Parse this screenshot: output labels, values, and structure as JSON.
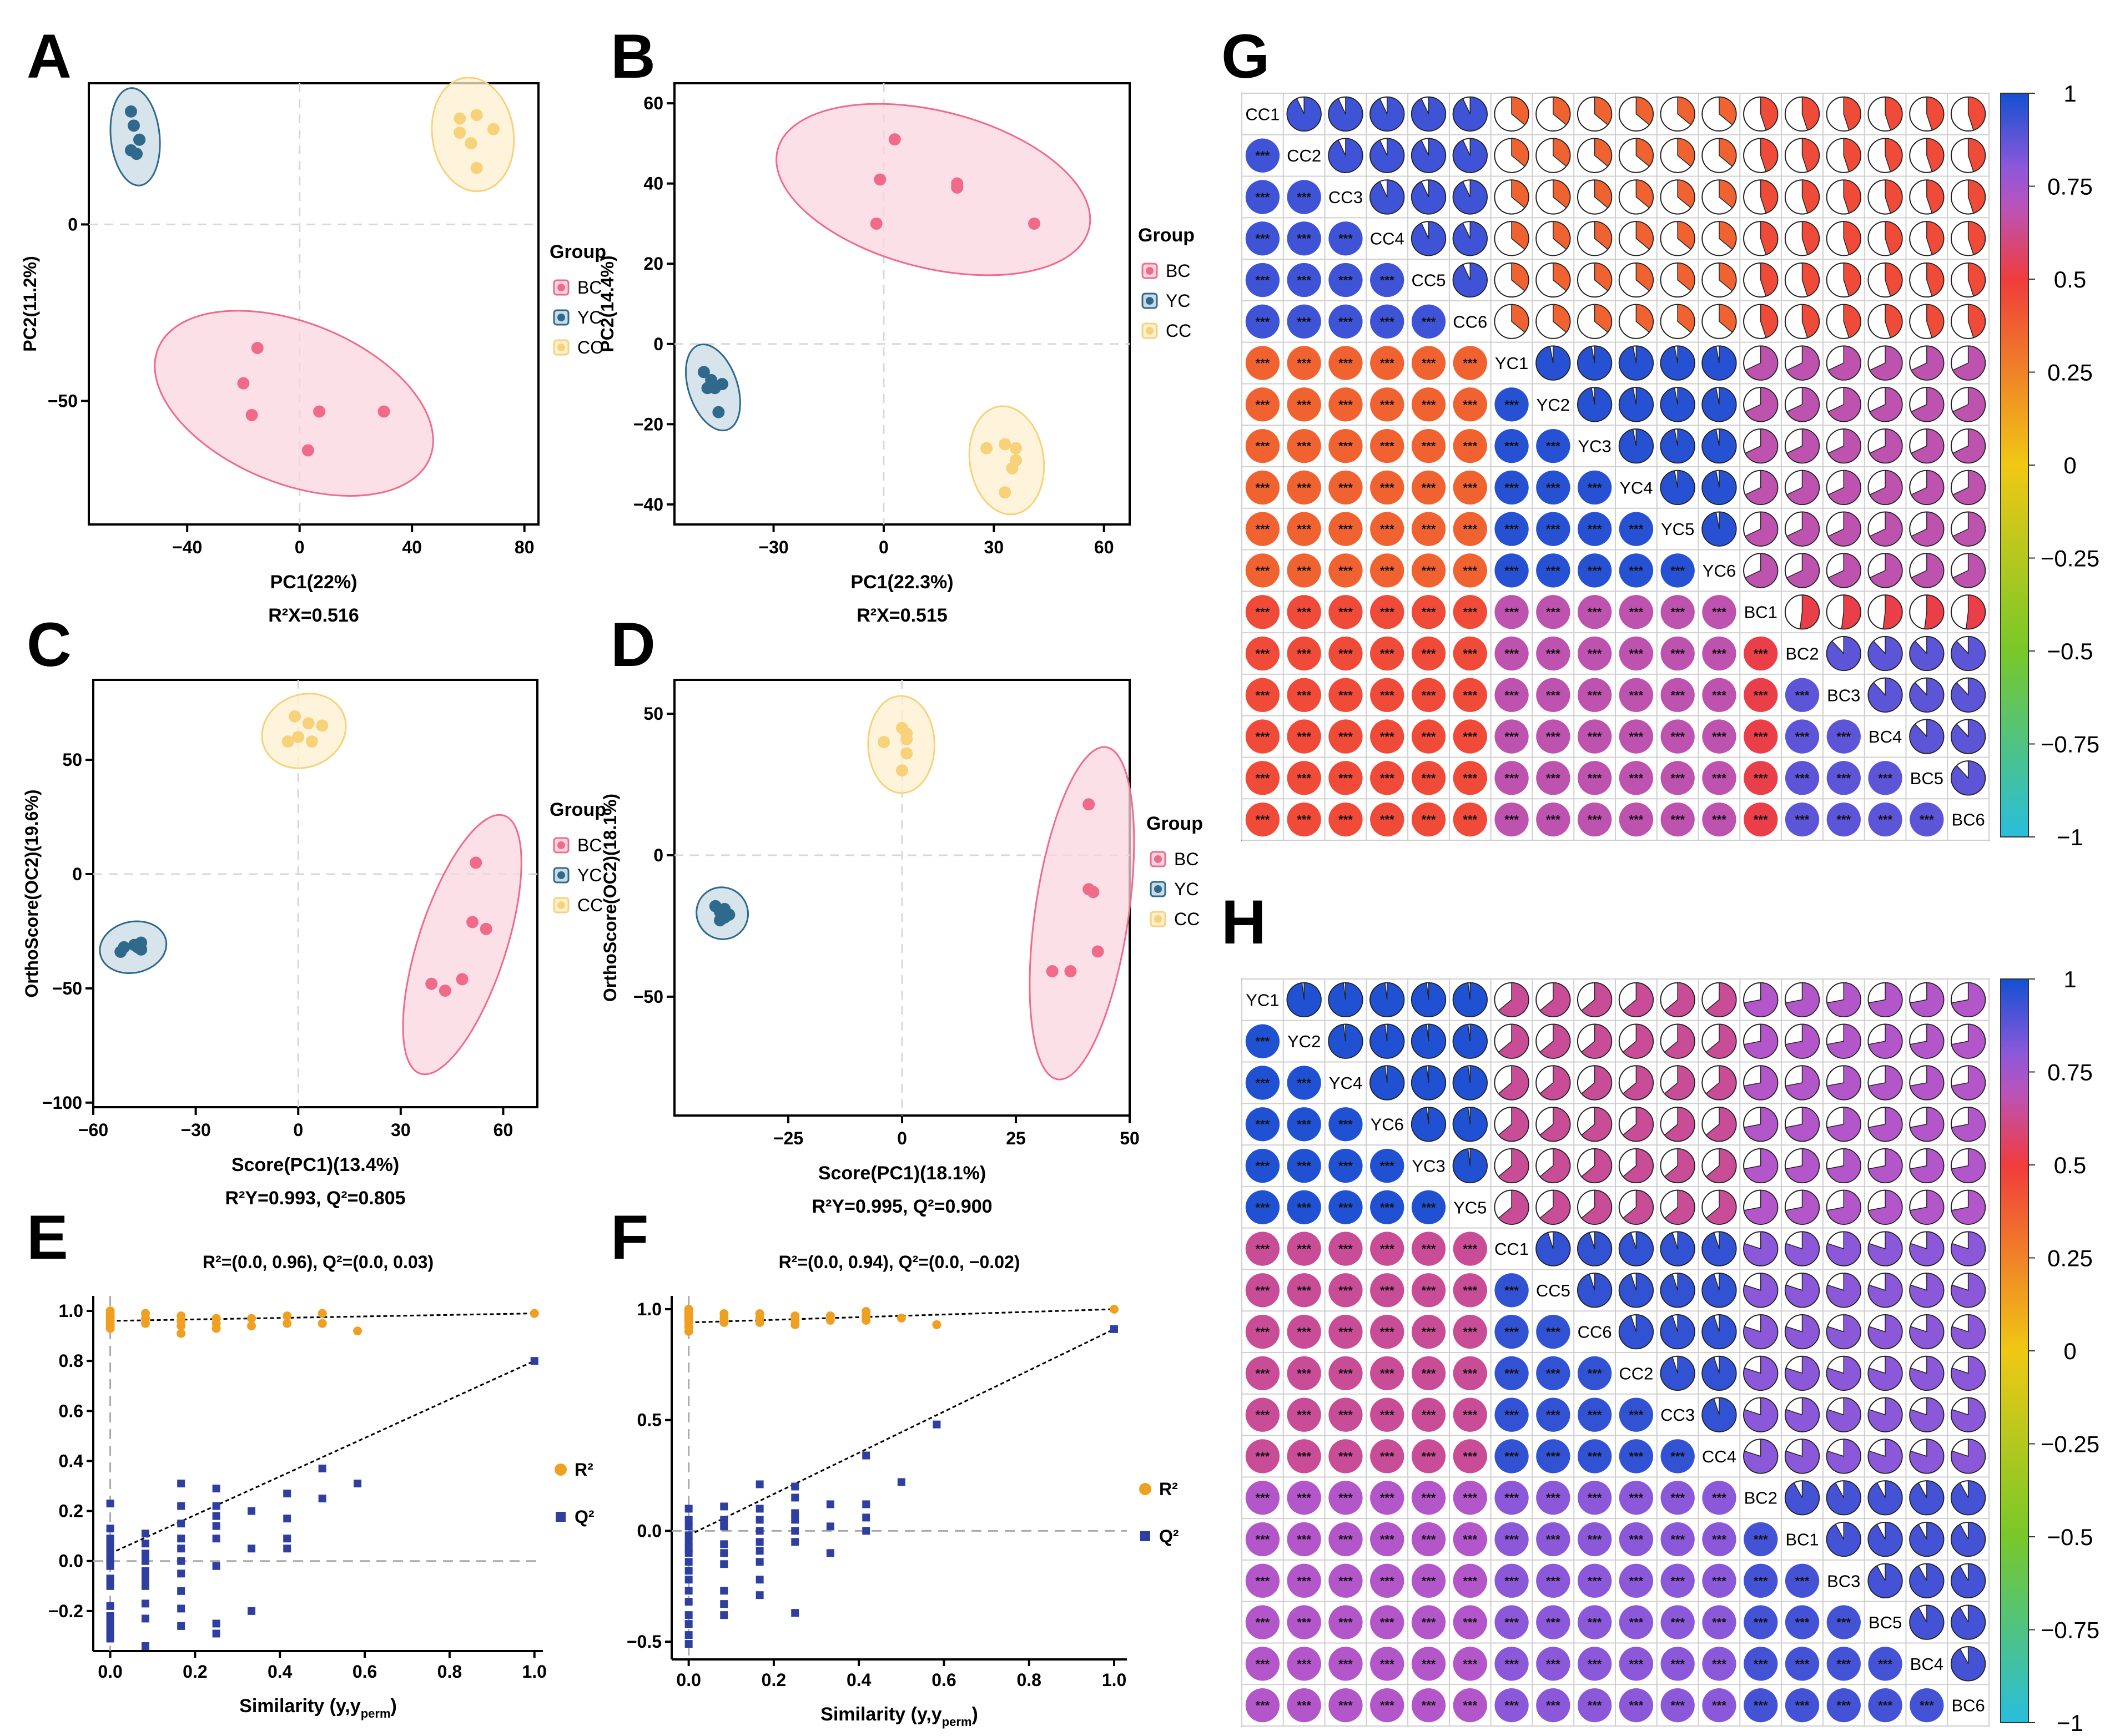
{
  "panels": {
    "A": {
      "letter": "A",
      "xlabel": "PC1(22%)",
      "ylabel": "PC2(11.2%)",
      "caption": "R²X=0.516"
    },
    "B": {
      "letter": "B",
      "xlabel": "PC1(22.3%)",
      "ylabel": "PC2(14.4%)",
      "caption": "R²X=0.515"
    },
    "C": {
      "letter": "C",
      "xlabel": "Score(PC1)(13.4%)",
      "ylabel": "OrthoScore(OC2)(19.6%)",
      "caption": "R²Y=0.993, Q²=0.805"
    },
    "D": {
      "letter": "D",
      "xlabel": "Score(PC1)(18.1%)",
      "ylabel": "OrthoScore(OC2)(18.1%)",
      "caption": "R²Y=0.995, Q²=0.900"
    },
    "E": {
      "letter": "E",
      "title": "R²=(0.0, 0.96), Q²=(0.0, 0.03)",
      "xlabel_main": "Similarity (y,y",
      "xlabel_sub": "perm",
      "xlabel_end": ")"
    },
    "F": {
      "letter": "F",
      "title": "R²=(0.0, 0.94), Q²=(0.0, −0.02)",
      "xlabel_main": "Similarity (y,y",
      "xlabel_sub": "perm",
      "xlabel_end": ")"
    },
    "G": {
      "letter": "G"
    },
    "H": {
      "letter": "H"
    }
  },
  "legend_title": "Group",
  "groups": [
    {
      "name": "BC",
      "color": "#f06a8a"
    },
    {
      "name": "YC",
      "color": "#2f6a8c"
    },
    {
      "name": "CC",
      "color": "#f7d27a"
    }
  ],
  "perm_legend": [
    {
      "name": "R²",
      "color": "#f0a020"
    },
    {
      "name": "Q²",
      "color": "#2f3f9f"
    }
  ],
  "significance_label": "***",
  "chart_data": [
    {
      "panel": "A",
      "type": "scatter",
      "xlim": [
        -75,
        85
      ],
      "ylim": [
        -85,
        40
      ],
      "xticks": [
        -40,
        0,
        40,
        80
      ],
      "yticks": [
        -50,
        0
      ],
      "series": [
        {
          "name": "BC",
          "x": [
            -15,
            -17,
            -20,
            7,
            30,
            3
          ],
          "y": [
            -35,
            -54,
            -45,
            -53,
            -53,
            -64
          ]
        },
        {
          "name": "YC",
          "x": [
            -60,
            -59,
            -57,
            -60,
            -57,
            -58
          ],
          "y": [
            32,
            28,
            24,
            21,
            24,
            20
          ]
        },
        {
          "name": "CC",
          "x": [
            57,
            63,
            69,
            57,
            61,
            63
          ],
          "y": [
            30,
            31,
            27,
            26,
            23,
            16
          ]
        }
      ]
    },
    {
      "panel": "B",
      "type": "scatter",
      "xlim": [
        -57,
        67
      ],
      "ylim": [
        -45,
        65
      ],
      "xticks": [
        -30,
        0,
        30,
        60
      ],
      "yticks": [
        -40,
        -20,
        0,
        20,
        40,
        60
      ],
      "series": [
        {
          "name": "BC",
          "x": [
            3,
            -1,
            20,
            20,
            41,
            -2
          ],
          "y": [
            51,
            41,
            40,
            39,
            30,
            30
          ]
        },
        {
          "name": "YC",
          "x": [
            -49,
            -47,
            -44,
            -46,
            -48,
            -45
          ],
          "y": [
            -7,
            -9,
            -10,
            -11,
            -11,
            -17
          ]
        },
        {
          "name": "CC",
          "x": [
            28,
            33,
            36,
            36,
            35,
            33
          ],
          "y": [
            -26,
            -25,
            -26,
            -29,
            -31,
            -37
          ]
        }
      ]
    },
    {
      "panel": "C",
      "type": "scatter",
      "xlim": [
        -60,
        70
      ],
      "ylim": [
        -102,
        85
      ],
      "xticks": [
        -60,
        -30,
        0,
        30,
        60
      ],
      "yticks": [
        -100,
        -50,
        0,
        50
      ],
      "series": [
        {
          "name": "BC",
          "x": [
            52,
            51,
            55,
            39,
            43,
            48
          ],
          "y": [
            5,
            -21,
            -24,
            -48,
            -51,
            -46
          ]
        },
        {
          "name": "YC",
          "x": [
            -46,
            -48,
            -51,
            -47,
            -46,
            -52
          ],
          "y": [
            -30,
            -31,
            -32,
            -32,
            -33,
            -34
          ]
        },
        {
          "name": "CC",
          "x": [
            -1,
            3,
            7,
            0,
            4,
            -3
          ],
          "y": [
            69,
            66,
            65,
            60,
            58,
            58
          ]
        }
      ]
    },
    {
      "panel": "D",
      "type": "scatter",
      "xlim": [
        -50,
        50
      ],
      "ylim": [
        -92,
        62
      ],
      "xticks": [
        -25,
        0,
        25,
        50
      ],
      "yticks": [
        -50,
        0,
        50
      ],
      "series": [
        {
          "name": "BC",
          "x": [
            41,
            41,
            42,
            43,
            37,
            33
          ],
          "y": [
            18,
            -12,
            -13,
            -34,
            -41,
            -41
          ]
        },
        {
          "name": "YC",
          "x": [
            -41,
            -39,
            -40,
            -38,
            -39,
            -40
          ],
          "y": [
            -18,
            -19,
            -20,
            -21,
            -22,
            -23
          ]
        },
        {
          "name": "CC",
          "x": [
            0,
            1,
            1,
            1,
            -4,
            0
          ],
          "y": [
            45,
            43,
            41,
            36,
            40,
            30
          ]
        }
      ]
    },
    {
      "panel": "E",
      "type": "scatter",
      "xlim": [
        -0.04,
        1.02
      ],
      "ylim": [
        -0.36,
        1.06
      ],
      "xticks": [
        0,
        0.2,
        0.4,
        0.6,
        0.8,
        1.0
      ],
      "yticks": [
        -0.2,
        0,
        0.2,
        0.4,
        0.6,
        0.8,
        1.0
      ],
      "r2_line": {
        "intercept": 0.96,
        "end": 0.99
      },
      "q2_line": {
        "intercept": 0.03,
        "end": 0.8
      },
      "series": [
        {
          "name": "R²",
          "x": [
            0,
            0,
            0,
            0,
            0,
            0,
            0,
            0,
            0.083,
            0.083,
            0.083,
            0.167,
            0.167,
            0.167,
            0.167,
            0.25,
            0.25,
            0.25,
            0.333,
            0.333,
            0.417,
            0.417,
            0.5,
            0.5,
            0.583,
            1.0
          ],
          "y": [
            1.0,
            0.99,
            0.98,
            0.97,
            0.96,
            0.95,
            0.94,
            0.93,
            0.99,
            0.97,
            0.95,
            0.98,
            0.96,
            0.94,
            0.91,
            0.97,
            0.95,
            0.93,
            0.97,
            0.94,
            0.98,
            0.95,
            0.99,
            0.95,
            0.92,
            0.99
          ]
        },
        {
          "name": "Q²",
          "x": [
            0,
            0,
            0,
            0,
            0,
            0,
            0,
            0,
            0,
            0,
            0,
            0,
            0,
            0,
            0,
            0,
            0.083,
            0.083,
            0.083,
            0.083,
            0.083,
            0.083,
            0.083,
            0.083,
            0.083,
            0.083,
            0.167,
            0.167,
            0.167,
            0.167,
            0.167,
            0.167,
            0.167,
            0.167,
            0.167,
            0.167,
            0.25,
            0.25,
            0.25,
            0.25,
            0.25,
            0.25,
            0.25,
            0.25,
            0.333,
            0.333,
            0.333,
            0.417,
            0.417,
            0.417,
            0.417,
            0.5,
            0.5,
            0.583,
            1.0
          ],
          "y": [
            0.23,
            0.13,
            0.09,
            0.07,
            0.05,
            0.03,
            0.01,
            0.0,
            -0.02,
            -0.07,
            -0.1,
            -0.18,
            -0.22,
            -0.25,
            -0.28,
            -0.31,
            0.11,
            0.07,
            0.03,
            0.0,
            -0.04,
            -0.07,
            -0.1,
            -0.17,
            -0.23,
            -0.34,
            0.31,
            0.22,
            0.15,
            0.09,
            0.05,
            0.0,
            -0.05,
            -0.12,
            -0.19,
            -0.26,
            0.29,
            0.22,
            0.18,
            0.14,
            0.09,
            -0.02,
            -0.25,
            -0.29,
            0.2,
            0.05,
            -0.2,
            0.27,
            0.17,
            0.09,
            0.05,
            0.37,
            0.25,
            0.31,
            0.8
          ]
        }
      ]
    },
    {
      "panel": "F",
      "type": "scatter",
      "xlim": [
        -0.04,
        1.03
      ],
      "ylim": [
        -0.58,
        1.06
      ],
      "xticks": [
        0,
        0.2,
        0.4,
        0.6,
        0.8,
        1.0
      ],
      "yticks": [
        -0.5,
        0,
        0.5,
        1.0
      ],
      "r2_line": {
        "intercept": 0.94,
        "end": 1.0
      },
      "q2_line": {
        "intercept": -0.02,
        "end": 0.91
      },
      "series": [
        {
          "name": "R²",
          "x": [
            0,
            0,
            0,
            0,
            0,
            0,
            0,
            0,
            0,
            0.083,
            0.083,
            0.083,
            0.167,
            0.167,
            0.167,
            0.25,
            0.25,
            0.25,
            0.333,
            0.333,
            0.417,
            0.417,
            0.417,
            0.5,
            0.583,
            1.0
          ],
          "y": [
            1.0,
            0.99,
            0.98,
            0.97,
            0.96,
            0.95,
            0.94,
            0.92,
            0.9,
            0.98,
            0.96,
            0.94,
            0.98,
            0.96,
            0.94,
            0.97,
            0.95,
            0.93,
            0.97,
            0.95,
            0.99,
            0.97,
            0.95,
            0.96,
            0.93,
            1.0
          ],
          "colorstop": true
        },
        {
          "name": "Q²",
          "x": [
            0,
            0,
            0,
            0,
            0,
            0,
            0,
            0,
            0,
            0,
            0,
            0,
            0,
            0,
            0,
            0,
            0.083,
            0.083,
            0.083,
            0.083,
            0.083,
            0.083,
            0.083,
            0.083,
            0.083,
            0.167,
            0.167,
            0.167,
            0.167,
            0.167,
            0.167,
            0.167,
            0.167,
            0.167,
            0.25,
            0.25,
            0.25,
            0.25,
            0.25,
            0.25,
            0.25,
            0.333,
            0.333,
            0.333,
            0.417,
            0.417,
            0.417,
            0.417,
            0.5,
            0.583,
            1.0
          ],
          "y": [
            0.1,
            0.05,
            0.02,
            -0.02,
            -0.05,
            -0.08,
            -0.1,
            -0.14,
            -0.18,
            -0.22,
            -0.27,
            -0.32,
            -0.38,
            -0.42,
            -0.47,
            -0.51,
            0.11,
            0.05,
            0.02,
            -0.06,
            -0.1,
            -0.15,
            -0.27,
            -0.33,
            -0.38,
            0.21,
            0.1,
            0.05,
            0.0,
            -0.05,
            -0.09,
            -0.14,
            -0.22,
            -0.29,
            0.2,
            0.15,
            0.08,
            0.05,
            0.0,
            -0.05,
            -0.37,
            0.12,
            0.02,
            -0.1,
            0.34,
            0.12,
            0.06,
            0.0,
            0.22,
            0.48,
            0.91
          ]
        }
      ]
    },
    {
      "panel": "G",
      "type": "heatmap",
      "labels": [
        "CC1",
        "CC2",
        "CC3",
        "CC4",
        "CC5",
        "CC6",
        "YC1",
        "YC2",
        "YC3",
        "YC4",
        "YC5",
        "YC6",
        "BC1",
        "BC2",
        "BC3",
        "BC4",
        "BC5",
        "BC6"
      ],
      "blocks": [
        0.93,
        0.97,
        0.88
      ],
      "cross_cc_yc": 0.36,
      "cross_cc_bc": 0.45,
      "cross_yc_bc": 0.68,
      "bc1_row": 0.52,
      "colorbar_ticks": [
        "1",
        "0.75",
        "0.5",
        "0.25",
        "0",
        "−0.25",
        "−0.5",
        "−0.75",
        "−1"
      ]
    },
    {
      "panel": "H",
      "type": "heatmap",
      "labels": [
        "YC1",
        "YC2",
        "YC4",
        "YC6",
        "YC3",
        "YC5",
        "CC1",
        "CC5",
        "CC6",
        "CC2",
        "CC3",
        "CC4",
        "BC2",
        "BC1",
        "BC3",
        "BC5",
        "BC4",
        "BC6"
      ],
      "blocks": [
        0.98,
        0.95,
        0.92
      ],
      "cross_yc_cc": 0.64,
      "cross_yc_bc": 0.72,
      "cross_cc_bc": 0.8,
      "colorbar_ticks": [
        "1",
        "0.75",
        "0.5",
        "0.25",
        "0",
        "−0.25",
        "−0.5",
        "−0.75",
        "−1"
      ]
    }
  ]
}
